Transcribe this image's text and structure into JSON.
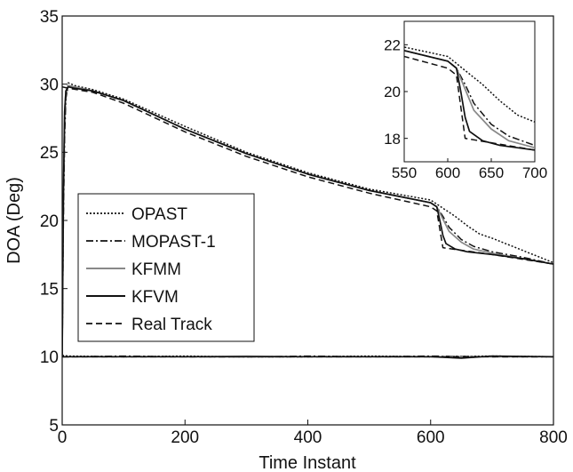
{
  "chart_data": {
    "type": "line",
    "title": "",
    "xlabel": "Time Instant",
    "ylabel": "DOA (Deg)",
    "xlim": [
      0,
      800
    ],
    "ylim": [
      5,
      35
    ],
    "xticks": [
      0,
      200,
      400,
      600,
      800
    ],
    "yticks": [
      5,
      10,
      15,
      20,
      25,
      30,
      35
    ],
    "grid": false,
    "legend_position": "lower-left",
    "series": [
      {
        "name": "OPAST",
        "style": "dotted",
        "color": "#111111",
        "tracks": [
          {
            "x": [
              0,
              2,
              4,
              6,
              10,
              20,
              50,
              100,
              200,
              300,
              400,
              500,
              600,
              610,
              620,
              640,
              660,
              680,
              700,
              750,
              800
            ],
            "y": [
              10,
              21,
              27,
              29,
              30.1,
              29.9,
              29.6,
              28.9,
              26.9,
              25.0,
              23.5,
              22.3,
              21.5,
              21.2,
              20.9,
              20.3,
              19.6,
              19.0,
              18.7,
              17.8,
              16.9
            ]
          },
          {
            "x": [
              0,
              10,
              100,
              200,
              300,
              400,
              500,
              600,
              700,
              800
            ],
            "y": [
              10.1,
              10.05,
              10.0,
              10.05,
              10.0,
              10.0,
              10.05,
              10.0,
              10.05,
              10.0
            ]
          }
        ]
      },
      {
        "name": "MOPAST-1",
        "style": "dashdot",
        "color": "#111111",
        "tracks": [
          {
            "x": [
              0,
              2,
              4,
              6,
              10,
              20,
              50,
              100,
              200,
              300,
              400,
              500,
              600,
              610,
              620,
              630,
              650,
              670,
              700,
              750,
              800
            ],
            "y": [
              10,
              20,
              26,
              29,
              29.9,
              29.8,
              29.5,
              28.8,
              26.7,
              24.9,
              23.4,
              22.2,
              21.3,
              21.0,
              20.3,
              19.5,
              18.6,
              18.1,
              17.7,
              17.3,
              16.8
            ]
          },
          {
            "x": [
              0,
              10,
              100,
              200,
              300,
              400,
              500,
              600,
              700,
              800
            ],
            "y": [
              10.0,
              10.0,
              10.05,
              10.0,
              10.0,
              10.05,
              10.0,
              10.05,
              10.0,
              10.0
            ]
          }
        ]
      },
      {
        "name": "KFMM",
        "style": "solid",
        "color": "#888888",
        "tracks": [
          {
            "x": [
              0,
              2,
              4,
              6,
              10,
              20,
              50,
              100,
              200,
              300,
              400,
              500,
              600,
              610,
              620,
              630,
              650,
              670,
              700,
              750,
              800
            ],
            "y": [
              10,
              22,
              28,
              29.5,
              29.9,
              29.8,
              29.5,
              28.8,
              26.7,
              24.9,
              23.4,
              22.2,
              21.3,
              21.0,
              20.1,
              19.2,
              18.4,
              17.9,
              17.6,
              17.2,
              16.8
            ]
          },
          {
            "x": [
              0,
              10,
              100,
              200,
              300,
              400,
              500,
              600,
              700,
              800
            ],
            "y": [
              10.0,
              10.0,
              10.0,
              10.0,
              10.05,
              10.0,
              10.0,
              10.0,
              10.0,
              10.0
            ]
          }
        ]
      },
      {
        "name": "KFVM",
        "style": "solid",
        "color": "#111111",
        "tracks": [
          {
            "x": [
              0,
              2,
              4,
              6,
              10,
              20,
              50,
              100,
              200,
              300,
              400,
              500,
              600,
              610,
              615,
              620,
              625,
              640,
              660,
              680,
              700,
              750,
              800
            ],
            "y": [
              10,
              22,
              28,
              29.5,
              29.8,
              29.7,
              29.5,
              28.8,
              26.7,
              24.9,
              23.4,
              22.2,
              21.3,
              21.0,
              20.0,
              18.9,
              18.3,
              17.9,
              17.7,
              17.6,
              17.5,
              17.2,
              16.8
            ]
          },
          {
            "x": [
              0,
              10,
              100,
              200,
              300,
              400,
              500,
              600,
              650,
              700,
              800
            ],
            "y": [
              10.0,
              10.0,
              10.0,
              10.0,
              10.0,
              10.0,
              10.0,
              10.0,
              9.9,
              10.05,
              10.0
            ]
          }
        ]
      },
      {
        "name": "Real Track",
        "style": "dashed",
        "color": "#111111",
        "tracks": [
          {
            "x": [
              0,
              10,
              50,
              100,
              200,
              300,
              400,
              500,
              600,
              610,
              620,
              700,
              800
            ],
            "y": [
              29.8,
              29.7,
              29.4,
              28.6,
              26.5,
              24.7,
              23.2,
              22.0,
              21.0,
              20.7,
              18.0,
              17.5,
              16.8
            ]
          },
          {
            "x": [
              0,
              800
            ],
            "y": [
              10.0,
              10.0
            ]
          }
        ]
      }
    ],
    "inset": {
      "xlim": [
        550,
        700
      ],
      "ylim": [
        17,
        23
      ],
      "xticks": [
        550,
        600,
        650,
        700
      ],
      "yticks": [
        18,
        20,
        22
      ]
    }
  }
}
